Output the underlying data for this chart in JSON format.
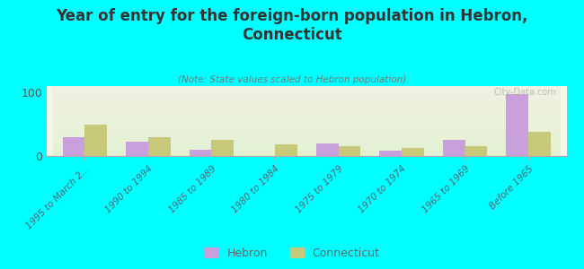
{
  "title": "Year of entry for the foreign-born population in Hebron,\nConnecticut",
  "subtitle": "(Note: State values scaled to Hebron population)",
  "categories": [
    "1995 to March 2...",
    "1990 to 1994",
    "1985 to 1989",
    "1980 to 1984",
    "1975 to 1979",
    "1970 to 1974",
    "1965 to 1969",
    "Before 1965"
  ],
  "hebron": [
    30,
    22,
    10,
    0,
    20,
    8,
    25,
    98
  ],
  "connecticut": [
    50,
    30,
    25,
    18,
    15,
    13,
    15,
    38
  ],
  "hebron_color": "#c9a0dc",
  "connecticut_color": "#c8c87a",
  "background_color": "#00ffff",
  "plot_bg_top": "#f5f5e8",
  "plot_bg_bottom": "#e8f5e8",
  "ylim": [
    0,
    110
  ],
  "yticks": [
    0,
    100
  ],
  "bar_width": 0.35,
  "watermark": "City-Data.com"
}
